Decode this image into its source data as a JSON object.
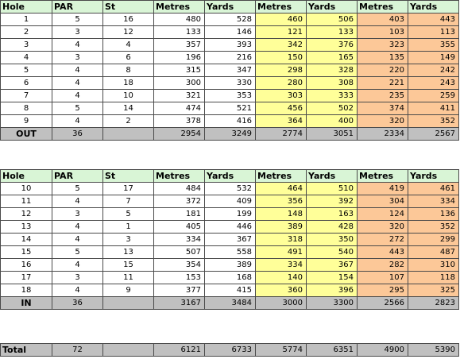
{
  "headers": [
    "Hole",
    "PAR",
    "St",
    "Metres",
    "Yards",
    "Metres",
    "Yards",
    "Metres",
    "Yards"
  ],
  "front_nine": {
    "rows": [
      [
        "1",
        "5",
        "16",
        "480",
        "528",
        "460",
        "506",
        "403",
        "443"
      ],
      [
        "2",
        "3",
        "12",
        "133",
        "146",
        "121",
        "133",
        "103",
        "113"
      ],
      [
        "3",
        "4",
        "4",
        "357",
        "393",
        "342",
        "376",
        "323",
        "355"
      ],
      [
        "4",
        "3",
        "6",
        "196",
        "216",
        "150",
        "165",
        "135",
        "149"
      ],
      [
        "5",
        "4",
        "8",
        "315",
        "347",
        "298",
        "328",
        "220",
        "242"
      ],
      [
        "6",
        "4",
        "18",
        "300",
        "330",
        "280",
        "308",
        "221",
        "243"
      ],
      [
        "7",
        "4",
        "10",
        "321",
        "353",
        "303",
        "333",
        "235",
        "259"
      ],
      [
        "8",
        "5",
        "14",
        "474",
        "521",
        "456",
        "502",
        "374",
        "411"
      ],
      [
        "9",
        "4",
        "2",
        "378",
        "416",
        "364",
        "400",
        "320",
        "352"
      ]
    ],
    "summary": [
      "OUT",
      "36",
      "",
      "2954",
      "3249",
      "2774",
      "3051",
      "2334",
      "2567"
    ]
  },
  "back_nine": {
    "rows": [
      [
        "10",
        "5",
        "17",
        "484",
        "532",
        "464",
        "510",
        "419",
        "461"
      ],
      [
        "11",
        "4",
        "7",
        "372",
        "409",
        "356",
        "392",
        "304",
        "334"
      ],
      [
        "12",
        "3",
        "5",
        "181",
        "199",
        "148",
        "163",
        "124",
        "136"
      ],
      [
        "13",
        "4",
        "1",
        "405",
        "446",
        "389",
        "428",
        "320",
        "352"
      ],
      [
        "14",
        "4",
        "3",
        "334",
        "367",
        "318",
        "350",
        "272",
        "299"
      ],
      [
        "15",
        "5",
        "13",
        "507",
        "558",
        "491",
        "540",
        "443",
        "487"
      ],
      [
        "16",
        "4",
        "15",
        "354",
        "389",
        "334",
        "367",
        "282",
        "310"
      ],
      [
        "17",
        "3",
        "11",
        "153",
        "168",
        "140",
        "154",
        "107",
        "118"
      ],
      [
        "18",
        "4",
        "9",
        "377",
        "415",
        "360",
        "396",
        "295",
        "325"
      ]
    ],
    "summary": [
      "IN",
      "36",
      "",
      "3167",
      "3484",
      "3000",
      "3300",
      "2566",
      "2823"
    ]
  },
  "total": [
    "Total",
    "72",
    "",
    "6121",
    "6733",
    "5774",
    "6351",
    "4900",
    "5390"
  ],
  "colors": {
    "header_bg": "#d9f5d6",
    "yellow_tee": "#ffff99",
    "orange_tee": "#fcc898",
    "summary_bg": "#c0c0c0"
  }
}
